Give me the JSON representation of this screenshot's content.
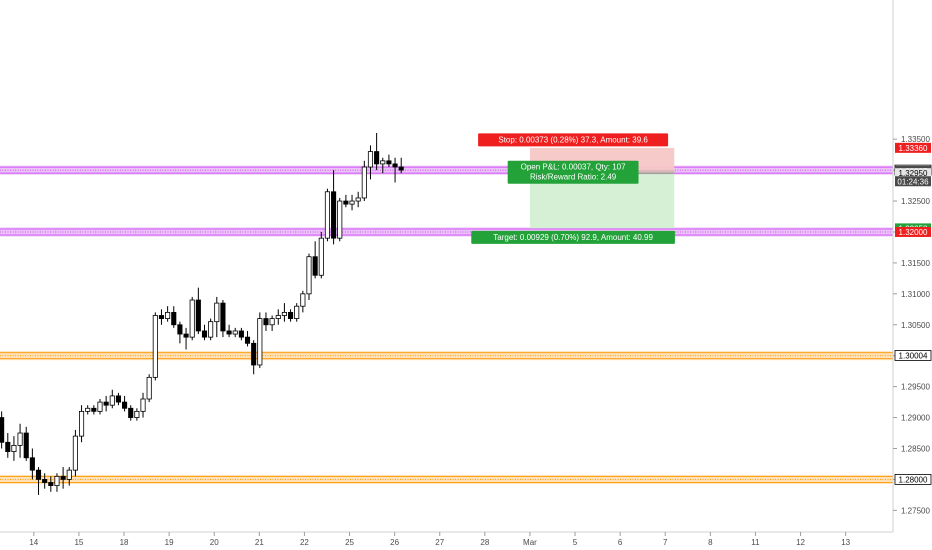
{
  "chart_data": {
    "type": "candlestick",
    "title": "",
    "xlabel": "",
    "ylabel": "",
    "ylim": [
      1.2715,
      1.3575
    ],
    "y_ticks": [
      "1.27500",
      "1.28000",
      "1.28500",
      "1.29000",
      "1.29500",
      "1.30000",
      "1.30500",
      "1.31000",
      "1.31500",
      "1.32000",
      "1.32500",
      "1.33000",
      "1.33500"
    ],
    "x_ticks": [
      {
        "label": "14",
        "day": 14
      },
      {
        "label": "15",
        "day": 15
      },
      {
        "label": "18",
        "day": 16
      },
      {
        "label": "19",
        "day": 17
      },
      {
        "label": "20",
        "day": 18
      },
      {
        "label": "21",
        "day": 19
      },
      {
        "label": "22",
        "day": 20
      },
      {
        "label": "25",
        "day": 21
      },
      {
        "label": "26",
        "day": 22
      },
      {
        "label": "27",
        "day": 23
      },
      {
        "label": "28",
        "day": 24
      },
      {
        "label": "Mar",
        "day": 25
      },
      {
        "label": "5",
        "day": 26
      },
      {
        "label": "6",
        "day": 27
      },
      {
        "label": "7",
        "day": 28
      },
      {
        "label": "8",
        "day": 29
      },
      {
        "label": "11",
        "day": 30
      },
      {
        "label": "12",
        "day": 31
      },
      {
        "label": "13",
        "day": 32
      }
    ],
    "x_range": [
      13.25,
      33.05
    ],
    "candle_start_day": 13.15,
    "candle_step_days": 0.1363,
    "candles": [
      [
        1.292,
        1.2955,
        1.286,
        1.29
      ],
      [
        1.29,
        1.291,
        1.285,
        1.286
      ],
      [
        1.286,
        1.2875,
        1.2835,
        1.2845
      ],
      [
        1.2845,
        1.287,
        1.283,
        1.2855
      ],
      [
        1.2855,
        1.289,
        1.2835,
        1.2875
      ],
      [
        1.2875,
        1.2885,
        1.283,
        1.2835
      ],
      [
        1.2835,
        1.285,
        1.28,
        1.2815
      ],
      [
        1.2815,
        1.282,
        1.2775,
        1.28
      ],
      [
        1.28,
        1.281,
        1.2785,
        1.2795
      ],
      [
        1.2795,
        1.2805,
        1.278,
        1.279
      ],
      [
        1.279,
        1.281,
        1.278,
        1.2805
      ],
      [
        1.2805,
        1.282,
        1.2785,
        1.28
      ],
      [
        1.28,
        1.282,
        1.279,
        1.2815
      ],
      [
        1.2815,
        1.288,
        1.2805,
        1.287
      ],
      [
        1.287,
        1.292,
        1.286,
        1.291
      ],
      [
        1.291,
        1.292,
        1.2905,
        1.2915
      ],
      [
        1.2915,
        1.292,
        1.2905,
        1.291
      ],
      [
        1.291,
        1.293,
        1.2905,
        1.2925
      ],
      [
        1.2925,
        1.2935,
        1.291,
        1.292
      ],
      [
        1.292,
        1.2945,
        1.2915,
        1.2935
      ],
      [
        1.2935,
        1.294,
        1.292,
        1.2925
      ],
      [
        1.2925,
        1.2935,
        1.291,
        1.2915
      ],
      [
        1.2915,
        1.292,
        1.2895,
        1.29
      ],
      [
        1.29,
        1.2915,
        1.2895,
        1.291
      ],
      [
        1.291,
        1.294,
        1.29,
        1.293
      ],
      [
        1.293,
        1.297,
        1.2925,
        1.2965
      ],
      [
        1.2965,
        1.307,
        1.296,
        1.3065
      ],
      [
        1.3065,
        1.3075,
        1.305,
        1.306
      ],
      [
        1.306,
        1.308,
        1.3055,
        1.307
      ],
      [
        1.307,
        1.308,
        1.3045,
        1.305
      ],
      [
        1.305,
        1.3055,
        1.302,
        1.3035
      ],
      [
        1.3035,
        1.3045,
        1.301,
        1.303
      ],
      [
        1.303,
        1.3095,
        1.3025,
        1.309
      ],
      [
        1.309,
        1.311,
        1.3035,
        1.304
      ],
      [
        1.304,
        1.305,
        1.3025,
        1.303
      ],
      [
        1.303,
        1.306,
        1.3025,
        1.3055
      ],
      [
        1.3055,
        1.3095,
        1.303,
        1.3085
      ],
      [
        1.3085,
        1.309,
        1.303,
        1.304
      ],
      [
        1.304,
        1.305,
        1.303,
        1.3035
      ],
      [
        1.3035,
        1.3045,
        1.303,
        1.304
      ],
      [
        1.304,
        1.3045,
        1.3025,
        1.303
      ],
      [
        1.303,
        1.304,
        1.3015,
        1.302
      ],
      [
        1.302,
        1.3025,
        1.297,
        1.2985
      ],
      [
        1.2985,
        1.307,
        1.298,
        1.306
      ],
      [
        1.306,
        1.307,
        1.304,
        1.305
      ],
      [
        1.305,
        1.3065,
        1.304,
        1.306
      ],
      [
        1.306,
        1.3075,
        1.305,
        1.3065
      ],
      [
        1.3065,
        1.3085,
        1.3055,
        1.307
      ],
      [
        1.307,
        1.3075,
        1.3055,
        1.306
      ],
      [
        1.306,
        1.3085,
        1.3055,
        1.308
      ],
      [
        1.308,
        1.3105,
        1.307,
        1.31
      ],
      [
        1.31,
        1.3165,
        1.309,
        1.316
      ],
      [
        1.316,
        1.3185,
        1.3125,
        1.313
      ],
      [
        1.313,
        1.32,
        1.3125,
        1.319
      ],
      [
        1.319,
        1.327,
        1.3185,
        1.3265
      ],
      [
        1.3265,
        1.33,
        1.318,
        1.319
      ],
      [
        1.319,
        1.3255,
        1.3185,
        1.325
      ],
      [
        1.325,
        1.326,
        1.324,
        1.3245
      ],
      [
        1.3245,
        1.326,
        1.3235,
        1.325
      ],
      [
        1.325,
        1.3265,
        1.324,
        1.3255
      ],
      [
        1.3255,
        1.3315,
        1.325,
        1.3305
      ],
      [
        1.3305,
        1.334,
        1.3285,
        1.333
      ],
      [
        1.333,
        1.336,
        1.33,
        1.331
      ],
      [
        1.331,
        1.332,
        1.3295,
        1.3315
      ],
      [
        1.3315,
        1.3325,
        1.3305,
        1.331
      ],
      [
        1.331,
        1.332,
        1.328,
        1.3305
      ],
      [
        1.3305,
        1.332,
        1.3295,
        1.33
      ]
    ],
    "bull_color": "#ffffff",
    "bear_color": "#000000",
    "wick_color": "#000000",
    "levels": [
      {
        "name": "resistance-1.33",
        "price": 1.33,
        "color": "#cc33ff",
        "fill": "#e6b3f2"
      },
      {
        "name": "resistance-1.32",
        "price": 1.32,
        "color": "#cc33ff",
        "fill": "#e6b3f2"
      },
      {
        "name": "support-1.30",
        "price": 1.3,
        "color": "#ff9800",
        "fill": "#ffd9a6"
      },
      {
        "name": "support-1.28",
        "price": 1.28,
        "color": "#ff9800",
        "fill": "#ffd9a6"
      }
    ],
    "position": {
      "side": "long",
      "stop_price": 1.3336,
      "entry_price": 1.3295,
      "target_price": 1.32058,
      "start_day": 25.0,
      "end_day": 28.2,
      "stop_label": "Stop: 0.00373 (0.28%) 37.3, Amount: 39.6",
      "open_label_line1": "Open P&L: 0.00037, Qty: 107",
      "open_label_line2": "Risk/Reward Ratio: 2.49",
      "target_label": "Target: 0.00929 (0.70%) 92.9, Amount: 40.99",
      "stop_zone_color": "#f7c7c7",
      "target_zone_color": "#d4efd4",
      "stop_label_color": "#ef1f1f",
      "target_label_color": "#23a23a",
      "open_label_color": "#23a23a"
    },
    "price_tags": [
      {
        "label": "1.33360",
        "price": 1.3336,
        "bg": "#ef1f1f",
        "fg": "#ffffff"
      },
      {
        "label": "1.33000",
        "price": 1.33,
        "bg": "#ffffff",
        "fg": "#000000",
        "border": "#000000"
      },
      {
        "label": "1.32987",
        "price": 1.32987,
        "bg": "#4a4a4a",
        "fg": "#ffffff"
      },
      {
        "label": "1.32950",
        "price": 1.3295,
        "bg": "#e6e6e6",
        "fg": "#000000"
      },
      {
        "label": "01:24:36",
        "price": 1.3282,
        "bg": "#4a4a4a",
        "fg": "#ffffff"
      },
      {
        "label": "1.32058",
        "price": 1.32058,
        "bg": "#23a23a",
        "fg": "#ffffff"
      },
      {
        "label": "1.32000",
        "price": 1.32,
        "bg": "#ef1f1f",
        "fg": "#ffffff"
      },
      {
        "label": "1.30004",
        "price": 1.30004,
        "bg": "#ffffff",
        "fg": "#000000",
        "border": "#000000"
      },
      {
        "label": "1.28000",
        "price": 1.28,
        "bg": "#ffffff",
        "fg": "#000000",
        "border": "#000000"
      }
    ],
    "grid": false,
    "legend": "none"
  }
}
